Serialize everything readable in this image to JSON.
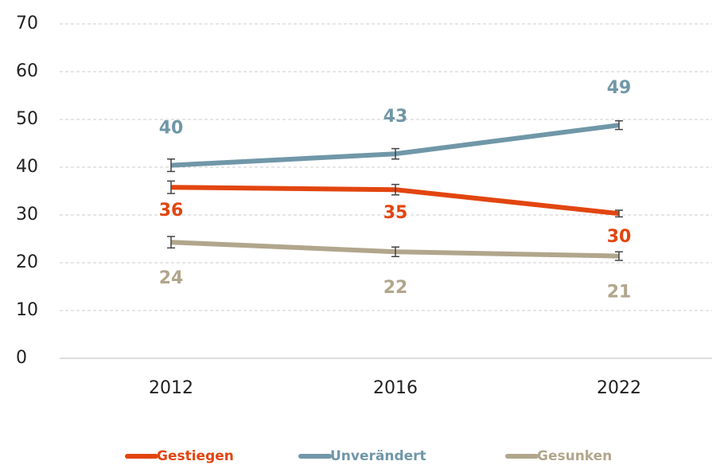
{
  "chart_data": {
    "type": "line",
    "categories": [
      "2012",
      "2016",
      "2022"
    ],
    "series": [
      {
        "name": "Gestiegen",
        "color": "#e2450f",
        "values": [
          35.8,
          35.3,
          30.3
        ],
        "value_labels": [
          "36",
          "35",
          "30"
        ],
        "errors": [
          1.3,
          1.1,
          0.7
        ]
      },
      {
        "name": "Unverändert",
        "color": "#7097a8",
        "values": [
          40.4,
          42.8,
          48.8
        ],
        "value_labels": [
          "40",
          "43",
          "49"
        ],
        "errors": [
          1.3,
          1.1,
          0.9
        ]
      },
      {
        "name": "Gesunken",
        "color": "#b1a68c",
        "values": [
          24.3,
          22.3,
          21.4
        ],
        "value_labels": [
          "24",
          "22",
          "21"
        ],
        "errors": [
          1.2,
          1.0,
          0.9
        ]
      }
    ],
    "ylim": [
      0,
      70
    ],
    "yticks": [
      0,
      10,
      20,
      30,
      40,
      50,
      60,
      70
    ],
    "grid": true,
    "legend": "bottom"
  }
}
